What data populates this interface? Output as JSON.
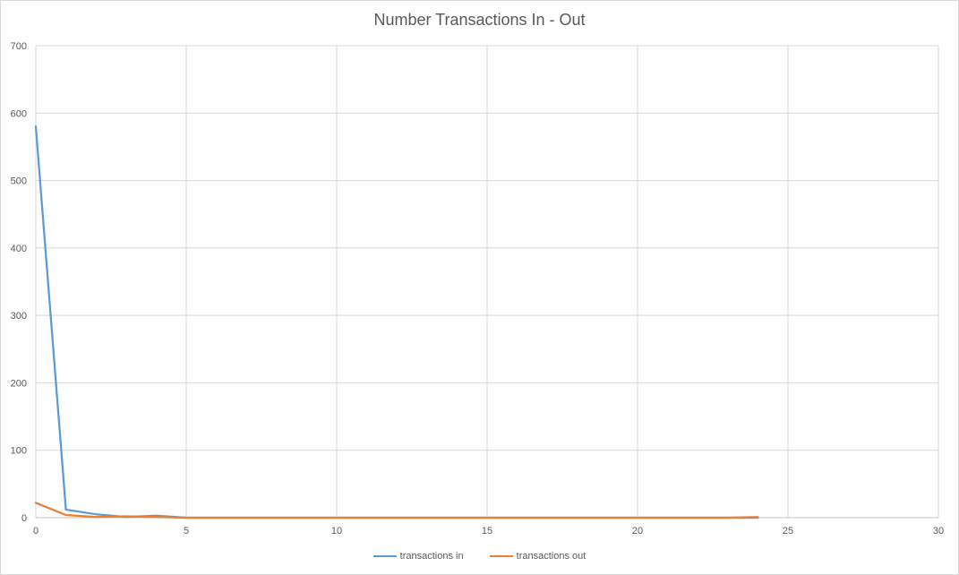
{
  "chart_data": {
    "type": "line",
    "title": "Number Transactions In - Out",
    "xlim": [
      0,
      30
    ],
    "ylim": [
      0,
      700
    ],
    "x_ticks": [
      0,
      5,
      10,
      15,
      20,
      25,
      30
    ],
    "y_ticks": [
      0,
      100,
      200,
      300,
      400,
      500,
      600,
      700
    ],
    "grid": true,
    "legend_position": "bottom",
    "series": [
      {
        "name": "transactions in",
        "color": "#5b9bd5",
        "x": [
          0,
          1,
          2,
          3,
          4,
          5,
          6,
          7,
          8,
          9,
          10,
          11,
          12,
          13,
          14,
          15,
          16,
          17,
          18,
          19,
          20,
          21,
          22,
          23,
          24
        ],
        "y": [
          580,
          12,
          5,
          1,
          3,
          0,
          0,
          0,
          0,
          0,
          0,
          0,
          0,
          0,
          0,
          0,
          0,
          0,
          0,
          0,
          0,
          0,
          0,
          0,
          0
        ]
      },
      {
        "name": "transactions out",
        "color": "#ed7d31",
        "x": [
          0,
          1,
          2,
          3,
          4,
          5,
          6,
          7,
          8,
          9,
          10,
          11,
          12,
          13,
          14,
          15,
          16,
          17,
          18,
          19,
          20,
          21,
          22,
          23,
          24
        ],
        "y": [
          22,
          4,
          1,
          2,
          1,
          0,
          0,
          0,
          0,
          0,
          0,
          0,
          0,
          0,
          0,
          0,
          0,
          0,
          0,
          0,
          0,
          0,
          0,
          0,
          1
        ]
      }
    ]
  }
}
